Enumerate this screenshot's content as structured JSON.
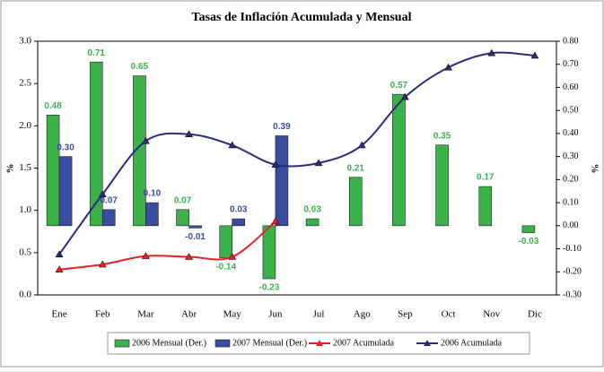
{
  "chart_data": {
    "type": "combo",
    "title": "Tasas de Inflación Acumulada y Mensual",
    "categories": [
      "Ene",
      "Feb",
      "Mar",
      "Abr",
      "May",
      "Jun",
      "Jul",
      "Ago",
      "Sep",
      "Oct",
      "Nov",
      "Dic"
    ],
    "y_label": "%",
    "y2_label": "%",
    "ylim": [
      0,
      3
    ],
    "yticks": [
      {
        "value": 0,
        "label": "0.0"
      },
      0.5,
      {
        "value": 1,
        "label": "1.0"
      },
      1.5,
      {
        "value": 2,
        "label": "2.0"
      },
      2.5,
      {
        "value": 3,
        "label": "3.0"
      }
    ],
    "y2lim": [
      -0.3,
      0.8
    ],
    "y2ticks": [
      {
        "value": -0.3,
        "label": "-0.30"
      },
      {
        "value": -0.2,
        "label": "-0.20"
      },
      {
        "value": -0.1,
        "label": "-0.10"
      },
      {
        "value": 0,
        "label": "0.00"
      },
      {
        "value": 0.1,
        "label": "0.10"
      },
      {
        "value": 0.2,
        "label": "0.20"
      },
      {
        "value": 0.3,
        "label": "0.30"
      },
      {
        "value": 0.4,
        "label": "0.40"
      },
      {
        "value": 0.5,
        "label": "0.50"
      },
      {
        "value": 0.6,
        "label": "0.60"
      },
      {
        "value": 0.7,
        "label": "0.70"
      },
      {
        "value": 0.8,
        "label": "0.80"
      }
    ],
    "series": [
      {
        "name": "2006 Mensual (Der.)",
        "kind": "bar",
        "axis": "y2",
        "color": "#3cb04a",
        "values": [
          0.48,
          0.71,
          0.65,
          0.07,
          -0.14,
          -0.23,
          0.03,
          0.21,
          0.57,
          0.35,
          0.17,
          -0.03
        ],
        "value_labels": [
          "0.48",
          "0.71",
          "0.65",
          "0.07",
          "-0.14",
          "-0.23",
          "0.03",
          "0.21",
          "0.57",
          "0.35",
          "0.17",
          "-0.03"
        ]
      },
      {
        "name": "2007 Mensual (Der.)",
        "kind": "bar",
        "axis": "y2",
        "color": "#3a4ea0",
        "values": [
          0.3,
          0.07,
          0.1,
          -0.01,
          0.03,
          0.39,
          null,
          null,
          null,
          null,
          null,
          null
        ],
        "value_labels": [
          "0.30",
          "0.07",
          "0.10",
          "-0.01",
          "0.03",
          "0.39",
          null,
          null,
          null,
          null,
          null,
          null
        ]
      },
      {
        "name": "2007 Acumulada",
        "kind": "line",
        "color": "#e8202a",
        "values": [
          0.3,
          0.36,
          0.46,
          0.45,
          0.45,
          0.87,
          null,
          null,
          null,
          null,
          null,
          null
        ]
      },
      {
        "name": "2006 Acumulada",
        "kind": "line",
        "color": "#2b2b7a",
        "values": [
          0.48,
          1.19,
          1.82,
          1.9,
          1.77,
          1.54,
          1.56,
          1.77,
          2.34,
          2.69,
          2.86,
          2.83
        ]
      }
    ]
  }
}
